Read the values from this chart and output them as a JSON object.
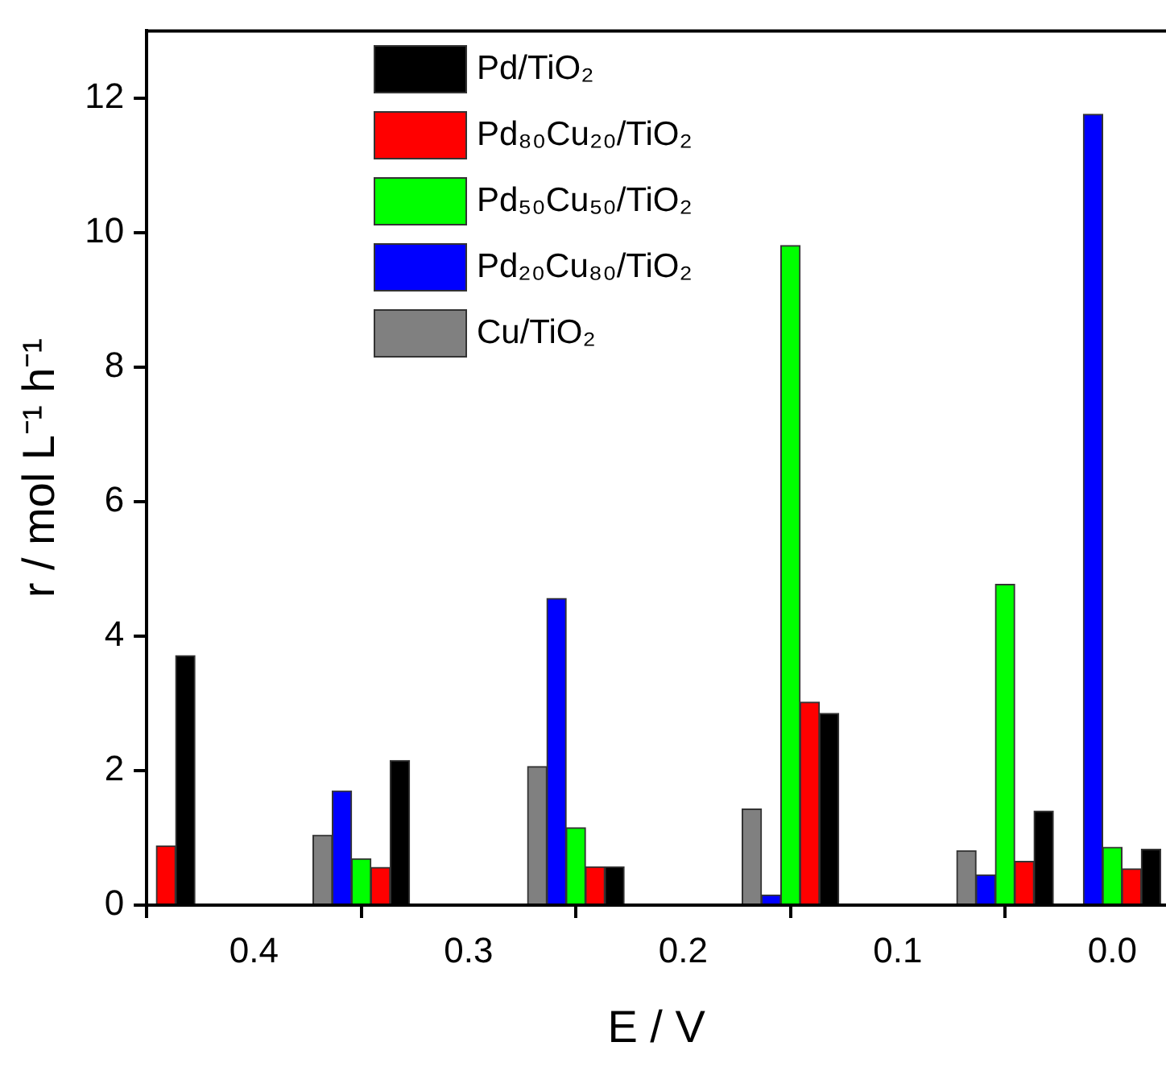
{
  "chart_data": {
    "type": "bar",
    "xlabel": "E / V",
    "ylabel": "r / mol L⁻¹ h⁻¹",
    "xlim": [
      0.45,
      -0.025
    ],
    "xticks": [
      0.4,
      0.3,
      0.2,
      0.1,
      {
        "value": 0,
        "label": "0.0"
      }
    ],
    "ylim": [
      0,
      13
    ],
    "yticks": [
      0,
      2,
      4,
      6,
      8,
      10,
      12
    ],
    "legend": "top left",
    "series": [
      {
        "name": "Pd/TiO₂",
        "color": "#000000",
        "x": [
          0.432,
          0.332,
          0.232,
          0.132,
          0.032,
          -0.018
        ],
        "values": [
          3.71,
          2.15,
          0.57,
          2.85,
          1.4,
          0.83
        ]
      },
      {
        "name": "Pd₈₀Cu₂₀/TiO₂",
        "color": "#ff0000",
        "x": [
          0.441,
          0.341,
          0.241,
          0.141,
          0.041,
          -0.009
        ],
        "values": [
          0.88,
          0.56,
          0.57,
          3.02,
          0.65,
          0.54
        ]
      },
      {
        "name": "Pd₅₀Cu₅₀/TiO₂",
        "color": "#00ff00",
        "x": [
          0.35,
          0.25,
          0.15,
          0.05,
          0.0
        ],
        "values": [
          0.69,
          1.15,
          9.81,
          4.77,
          0.86
        ]
      },
      {
        "name": "Pd₂₀Cu₈₀/TiO₂",
        "color": "#0000ff",
        "x": [
          0.359,
          0.259,
          0.159,
          0.059,
          0.009
        ],
        "values": [
          1.7,
          4.56,
          0.15,
          0.45,
          11.76
        ]
      },
      {
        "name": "Cu/TiO₂",
        "color": "#808080",
        "x": [
          0.368,
          0.268,
          0.168,
          0.068
        ],
        "values": [
          1.04,
          2.06,
          1.43,
          0.81
        ]
      }
    ]
  }
}
